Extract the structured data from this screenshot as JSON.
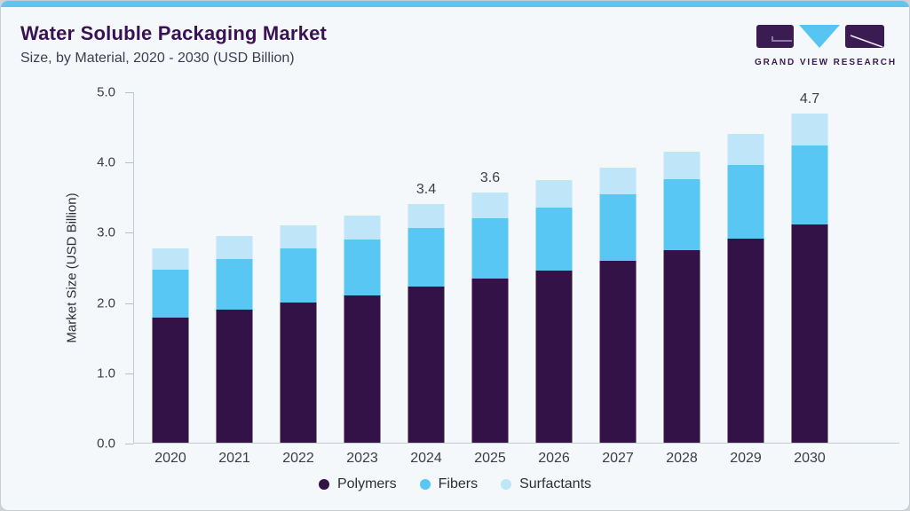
{
  "header": {
    "title": "Water Soluble Packaging Market",
    "subtitle": "Size, by Material, 2020 - 2030 (USD Billion)"
  },
  "logo": {
    "caption": "GRAND VIEW RESEARCH",
    "mark_dark_color": "#3a1c52",
    "mark_blue_color": "#56c5f2"
  },
  "colors": {
    "topbar_accent": "#62c4ee",
    "title_text": "#3a1254",
    "axis_line": "#c3c9d1",
    "tick_text": "#3c3c46"
  },
  "chart_data": {
    "type": "bar",
    "stacked": true,
    "title": "Water Soluble Packaging Market Size, by Material, 2020 - 2030 (USD Billion)",
    "xlabel": "",
    "ylabel": "Market Size (USD Billion)",
    "ylim": [
      0,
      5
    ],
    "y_ticks": [
      "0.0",
      "1.0",
      "2.0",
      "3.0",
      "4.0",
      "5.0"
    ],
    "grid": false,
    "legend_position": "bottom",
    "categories": [
      "2020",
      "2021",
      "2022",
      "2023",
      "2024",
      "2025",
      "2026",
      "2027",
      "2028",
      "2029",
      "2030"
    ],
    "series": [
      {
        "name": "Polymers",
        "color": "#331347",
        "values": [
          1.78,
          1.9,
          2.0,
          2.1,
          2.22,
          2.33,
          2.45,
          2.59,
          2.74,
          2.91,
          3.1
        ]
      },
      {
        "name": "Fibers",
        "color": "#59c7f3",
        "values": [
          0.68,
          0.71,
          0.76,
          0.79,
          0.83,
          0.87,
          0.9,
          0.95,
          1.01,
          1.04,
          1.13
        ]
      },
      {
        "name": "Surfactants",
        "color": "#bfe5f9",
        "values": [
          0.31,
          0.33,
          0.34,
          0.34,
          0.35,
          0.36,
          0.39,
          0.38,
          0.39,
          0.44,
          0.45
        ]
      }
    ],
    "totals": [
      2.77,
      2.94,
      3.1,
      3.23,
      3.4,
      3.56,
      3.74,
      3.92,
      4.14,
      4.39,
      4.68
    ],
    "bar_labels": [
      "",
      "",
      "",
      "",
      "3.4",
      "3.6",
      "",
      "",
      "",
      "",
      "4.7"
    ]
  }
}
